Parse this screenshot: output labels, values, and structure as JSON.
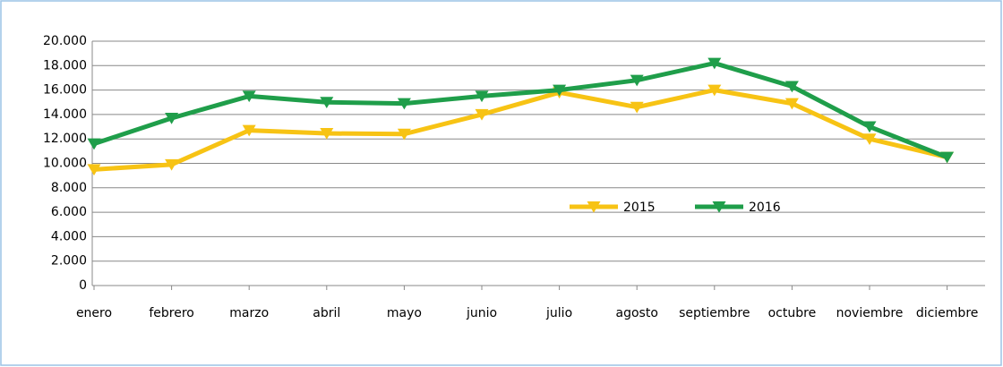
{
  "chart_data": {
    "type": "line",
    "categories": [
      "enero",
      "febrero",
      "marzo",
      "abril",
      "mayo",
      "junio",
      "julio",
      "agosto",
      "septiembre",
      "octubre",
      "noviembre",
      "diciembre"
    ],
    "series": [
      {
        "name": "2015",
        "color": "#f7c314",
        "values": [
          9500,
          9900,
          12700,
          12450,
          12400,
          14000,
          15800,
          14600,
          16000,
          14900,
          12000,
          10500
        ]
      },
      {
        "name": "2016",
        "color": "#1f9e4a",
        "values": [
          11600,
          13700,
          15500,
          15000,
          14900,
          15500,
          16000,
          16800,
          18200,
          16300,
          13000,
          10500
        ]
      }
    ],
    "ylim": [
      0,
      20000
    ],
    "yticks": [
      0,
      {
        "value": 2000,
        "label": "2.000"
      },
      {
        "value": 4000,
        "label": "4.000"
      },
      {
        "value": 6000,
        "label": "6.000"
      },
      {
        "value": 8000,
        "label": "8.000"
      },
      {
        "value": 10000,
        "label": "10.000"
      },
      {
        "value": 12000,
        "label": "12.000"
      },
      {
        "value": 14000,
        "label": "14.000"
      },
      {
        "value": 16000,
        "label": "16.000"
      },
      {
        "value": 18000,
        "label": "18.000"
      },
      {
        "value": 20000,
        "label": "20.000"
      }
    ],
    "grid": true
  }
}
